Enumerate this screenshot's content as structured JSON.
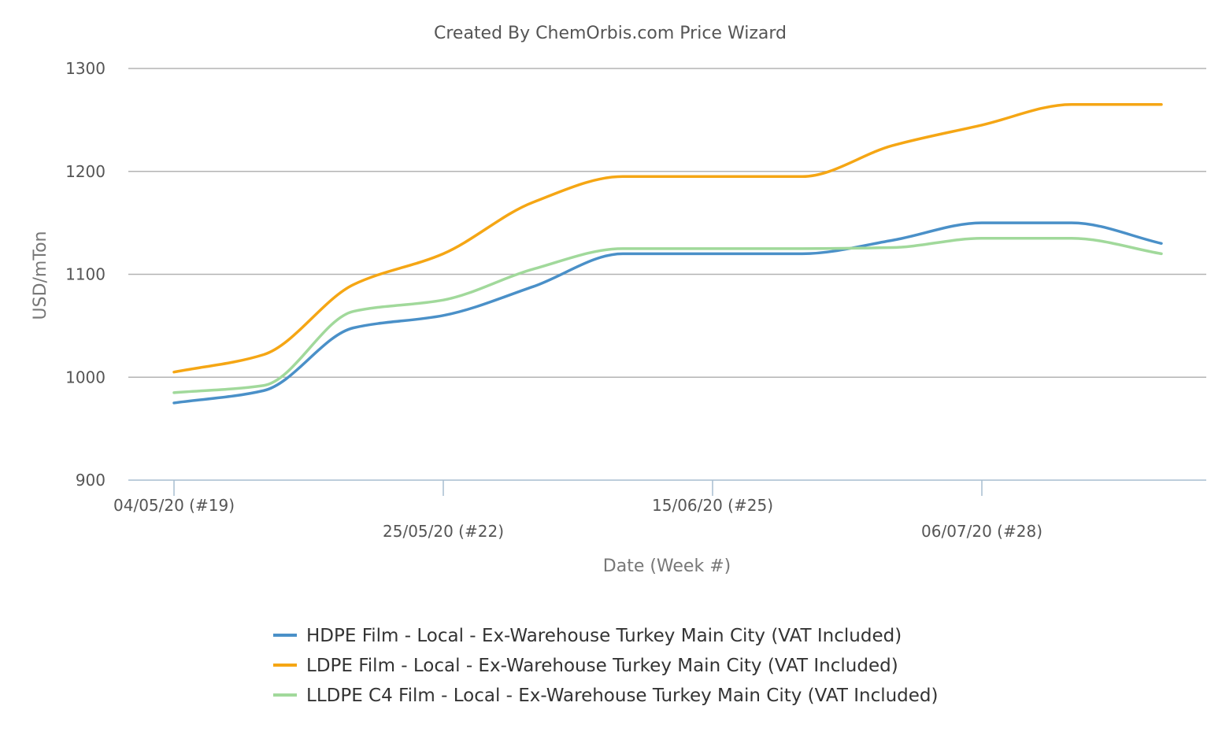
{
  "chart_data": {
    "type": "line",
    "title": "Created By ChemOrbis.com Price Wizard",
    "xlabel": "Date (Week #)",
    "ylabel": "USD/mTon",
    "ylim": [
      900,
      1300
    ],
    "yticks": [
      900,
      1000,
      1100,
      1200,
      1300
    ],
    "x": [
      "04/05/20",
      "11/05/20",
      "18/05/20",
      "25/05/20",
      "01/06/20",
      "08/06/20",
      "15/06/20",
      "22/06/20",
      "29/06/20",
      "06/07/20",
      "13/07/20",
      "20/07/20"
    ],
    "xtick_labels": [
      {
        "x": "04/05/20",
        "label": "04/05/20 (#19)",
        "row": 1
      },
      {
        "x": "25/05/20",
        "label": "25/05/20 (#22)",
        "row": 2
      },
      {
        "x": "15/06/20",
        "label": "15/06/20 (#25)",
        "row": 1
      },
      {
        "x": "06/07/20",
        "label": "06/07/20 (#28)",
        "row": 2
      }
    ],
    "grid": true,
    "legend_position": "bottom",
    "series": [
      {
        "name": "HDPE Film - Local - Ex-Warehouse Turkey Main City  (VAT Included)",
        "color": "#4a90c8",
        "values": [
          975,
          987,
          1048,
          1060,
          1088,
          1120,
          1120,
          1120,
          1133,
          1150,
          1150,
          1130
        ]
      },
      {
        "name": "LDPE Film - Local - Ex-Warehouse Turkey Main City  (VAT Included)",
        "color": "#f5a614",
        "values": [
          1005,
          1022,
          1090,
          1120,
          1170,
          1195,
          1195,
          1195,
          1225,
          1245,
          1265,
          1265
        ]
      },
      {
        "name": "LLDPE C4 Film - Local - Ex-Warehouse Turkey Main City  (VAT Included)",
        "color": "#a1d99b",
        "values": [
          985,
          992,
          1064,
          1075,
          1105,
          1125,
          1125,
          1125,
          1126,
          1135,
          1135,
          1120
        ]
      }
    ]
  }
}
